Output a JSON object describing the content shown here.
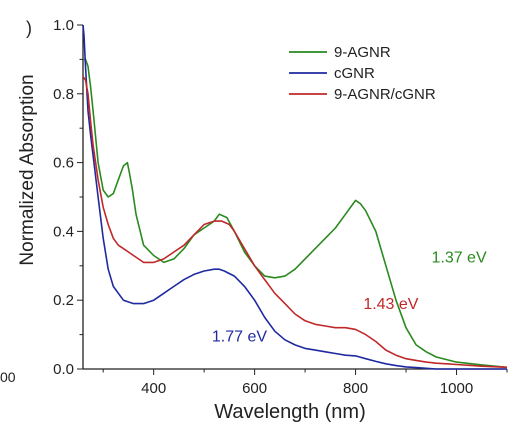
{
  "fragments": {
    "top_left": ")",
    "bottom_left": "00"
  },
  "chart_data": {
    "type": "line",
    "xlabel": "Wavelength (nm)",
    "ylabel": "Normalized Absorption",
    "xlim": [
      260,
      1100
    ],
    "ylim": [
      0.0,
      1.0
    ],
    "xticks": [
      400,
      600,
      800,
      1000
    ],
    "yticks": [
      0.0,
      0.2,
      0.4,
      0.6,
      0.8,
      1.0
    ],
    "ytick_labels": [
      "0.0",
      "0.2",
      "0.4",
      "0.6",
      "0.8",
      "1.0"
    ],
    "grid": false,
    "legend_position": "top-right",
    "series": [
      {
        "name": "9-AGNR",
        "color": "#2a8a1f",
        "x": [
          260,
          265,
          270,
          275,
          280,
          290,
          300,
          310,
          320,
          330,
          340,
          348,
          352,
          358,
          365,
          380,
          400,
          420,
          440,
          460,
          480,
          500,
          520,
          530,
          545,
          560,
          580,
          600,
          620,
          640,
          660,
          680,
          700,
          720,
          740,
          760,
          780,
          795,
          800,
          810,
          820,
          840,
          860,
          880,
          900,
          920,
          940,
          960,
          1000,
          1050,
          1100
        ],
        "y": [
          0.9,
          0.9,
          0.88,
          0.82,
          0.75,
          0.6,
          0.52,
          0.5,
          0.51,
          0.55,
          0.59,
          0.6,
          0.57,
          0.52,
          0.45,
          0.36,
          0.33,
          0.31,
          0.32,
          0.35,
          0.39,
          0.41,
          0.43,
          0.45,
          0.44,
          0.4,
          0.34,
          0.3,
          0.27,
          0.265,
          0.27,
          0.29,
          0.32,
          0.35,
          0.38,
          0.41,
          0.45,
          0.48,
          0.49,
          0.48,
          0.46,
          0.4,
          0.3,
          0.2,
          0.12,
          0.07,
          0.05,
          0.035,
          0.02,
          0.012,
          0.005
        ]
      },
      {
        "name": "cGNR",
        "color": "#1f2aa0",
        "x": [
          260,
          262,
          265,
          270,
          275,
          280,
          290,
          300,
          310,
          320,
          340,
          360,
          380,
          400,
          420,
          440,
          460,
          480,
          500,
          520,
          530,
          540,
          560,
          580,
          600,
          620,
          640,
          660,
          680,
          700,
          720,
          740,
          760,
          780,
          800,
          820,
          840,
          860,
          880,
          900,
          920,
          940,
          960,
          980,
          1000,
          1050,
          1100
        ],
        "y": [
          1.0,
          0.97,
          0.88,
          0.75,
          0.68,
          0.62,
          0.5,
          0.38,
          0.29,
          0.24,
          0.2,
          0.19,
          0.19,
          0.2,
          0.22,
          0.24,
          0.26,
          0.275,
          0.285,
          0.29,
          0.29,
          0.285,
          0.27,
          0.24,
          0.2,
          0.15,
          0.11,
          0.085,
          0.07,
          0.06,
          0.055,
          0.05,
          0.045,
          0.04,
          0.038,
          0.03,
          0.022,
          0.015,
          0.01,
          0.006,
          0.004,
          0.002,
          0.0,
          0.0,
          0.0,
          0.0,
          0.0
        ]
      },
      {
        "name": "9-AGNR/cGNR",
        "color": "#c0282a",
        "x": [
          260,
          265,
          270,
          275,
          280,
          290,
          300,
          310,
          320,
          330,
          340,
          350,
          360,
          370,
          380,
          400,
          420,
          440,
          460,
          480,
          500,
          520,
          535,
          550,
          560,
          580,
          600,
          620,
          640,
          660,
          680,
          700,
          720,
          740,
          760,
          780,
          800,
          820,
          840,
          860,
          880,
          900,
          920,
          940,
          960,
          980,
          1000,
          1050,
          1100
        ],
        "y": [
          0.85,
          0.84,
          0.8,
          0.72,
          0.65,
          0.55,
          0.47,
          0.42,
          0.38,
          0.36,
          0.35,
          0.34,
          0.33,
          0.32,
          0.31,
          0.31,
          0.32,
          0.34,
          0.36,
          0.39,
          0.42,
          0.43,
          0.43,
          0.42,
          0.4,
          0.35,
          0.3,
          0.26,
          0.22,
          0.19,
          0.16,
          0.14,
          0.13,
          0.125,
          0.12,
          0.12,
          0.115,
          0.1,
          0.08,
          0.055,
          0.04,
          0.03,
          0.025,
          0.02,
          0.017,
          0.015,
          0.013,
          0.008,
          0.005
        ]
      }
    ],
    "annotations": [
      {
        "text": "1.37 eV",
        "x": 1005,
        "y": 0.31,
        "color": "#2a8a1f"
      },
      {
        "text": "1.43 eV",
        "x": 870,
        "y": 0.175,
        "color": "#c0282a"
      },
      {
        "text": "1.77 eV",
        "x": 570,
        "y": 0.08,
        "color": "#1f2aa0"
      }
    ]
  }
}
